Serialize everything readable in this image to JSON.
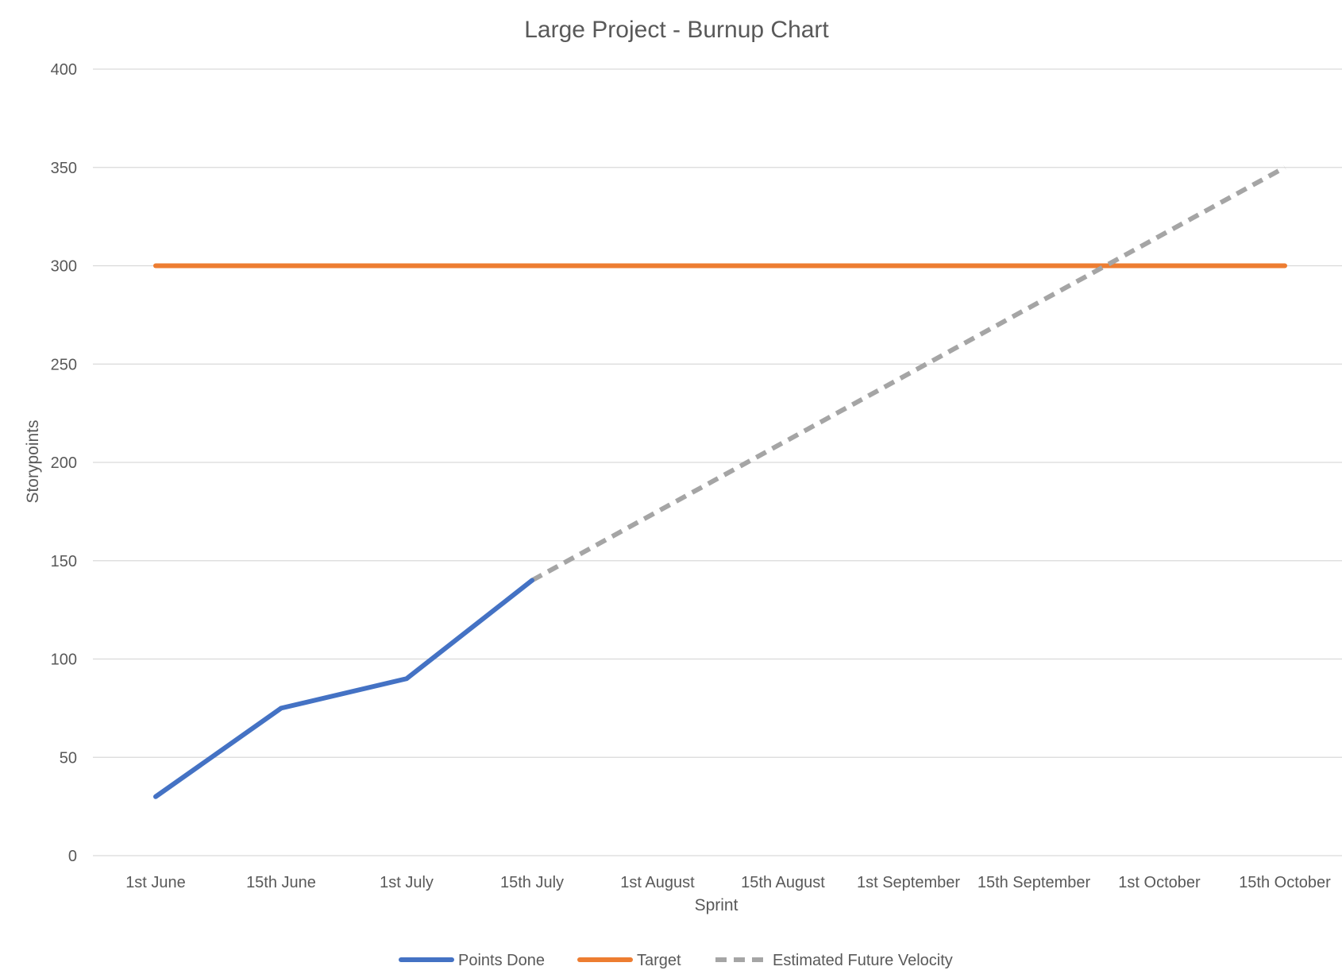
{
  "chart_data": {
    "type": "line",
    "title": "Large Project - Burnup Chart",
    "xlabel": "Sprint",
    "ylabel": "Storypoints",
    "categories": [
      "1st June",
      "15th June",
      "1st July",
      "15th July",
      "1st August",
      "15th August",
      "1st September",
      "15th September",
      "1st October",
      "15th October"
    ],
    "ylim": [
      0,
      400
    ],
    "yticks": [
      0,
      50,
      100,
      150,
      200,
      250,
      300,
      350,
      400
    ],
    "grid": true,
    "legend_position": "bottom",
    "series": [
      {
        "name": "Points Done",
        "color": "#4472c4",
        "style": "solid",
        "values": [
          30,
          75,
          90,
          140,
          null,
          null,
          null,
          null,
          null,
          null
        ]
      },
      {
        "name": "Target",
        "color": "#ed7d31",
        "style": "solid",
        "values": [
          300,
          300,
          300,
          300,
          300,
          300,
          300,
          300,
          300,
          300
        ]
      },
      {
        "name": "Estimated Future Velocity",
        "color": "#a5a5a5",
        "style": "dashed",
        "values": [
          null,
          null,
          null,
          140,
          175,
          210,
          245,
          280,
          315,
          350
        ]
      }
    ]
  }
}
